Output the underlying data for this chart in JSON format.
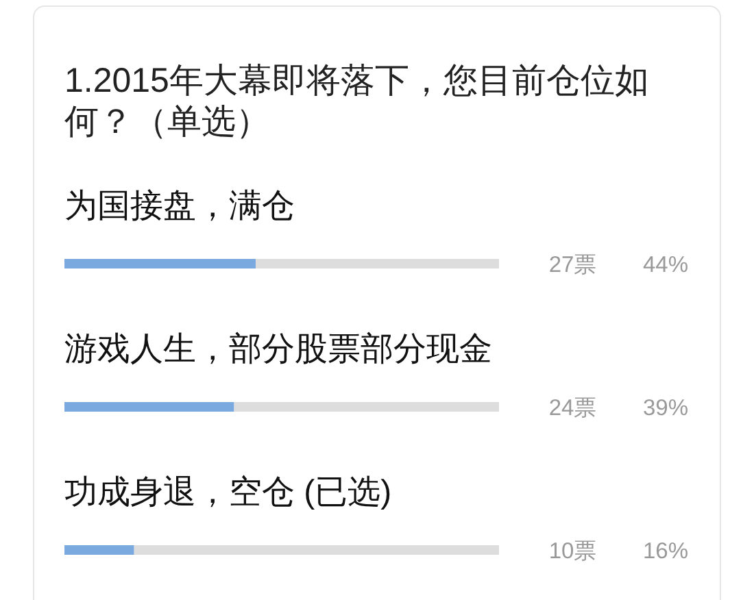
{
  "chart_data": {
    "type": "bar",
    "orientation": "horizontal",
    "title": "1.2015年大幕即将落下，您目前仓位如何？（单选）",
    "categories": [
      "为国接盘，满仓",
      "游戏人生，部分股票部分现金",
      "功成身退，空仓 (已选)"
    ],
    "values": [
      44,
      39,
      16
    ],
    "color": "#7aa9e0",
    "xlim": [
      0,
      100
    ],
    "tick_labels": false,
    "value_labels": [
      "44%",
      "39%",
      "16%"
    ],
    "annotations": [
      "27票",
      "24票",
      "10票"
    ]
  }
}
